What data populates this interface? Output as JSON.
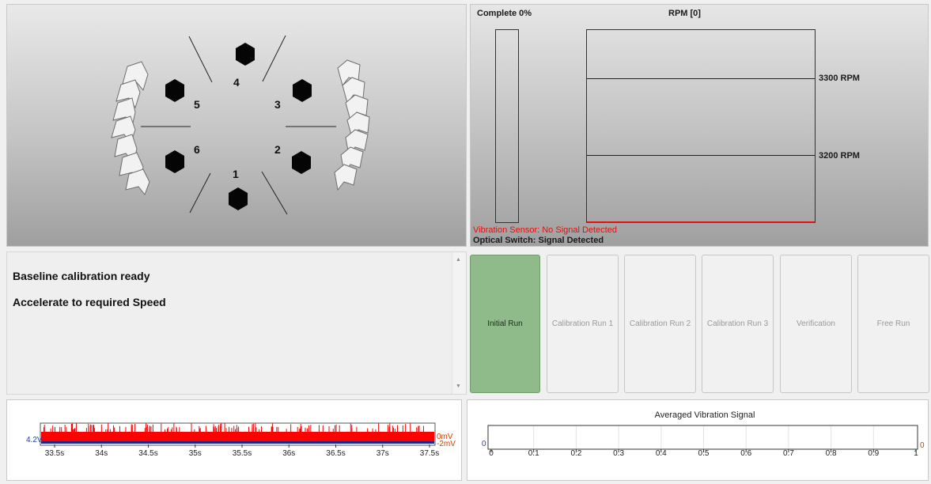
{
  "rotor": {
    "positions": [
      {
        "label": "1"
      },
      {
        "label": "2"
      },
      {
        "label": "3"
      },
      {
        "label": "4"
      },
      {
        "label": "5"
      },
      {
        "label": "6"
      }
    ]
  },
  "rpm_display": {
    "complete_label": "Complete 0%",
    "rpm_label": "RPM [0]",
    "upper_limit_label": "3300 RPM",
    "lower_limit_label": "3200 RPM",
    "vibration_status": "Vibration Sensor: No Signal Detected",
    "optical_status": "Optical Switch: Signal Detected",
    "status_error_color": "#e01010",
    "progress_fraction": 0
  },
  "messages": {
    "line1": "Baseline calibration ready",
    "line2": "Accelerate to required Speed"
  },
  "run_buttons": [
    {
      "label": "Initial Run",
      "active": true
    },
    {
      "label": "Calibration Run 1",
      "active": false
    },
    {
      "label": "Calibration Run 2",
      "active": false
    },
    {
      "label": "Calibration Run 3",
      "active": false
    },
    {
      "label": "Verification",
      "active": false
    },
    {
      "label": "Free Run",
      "active": false
    }
  ],
  "chart_data": [
    {
      "type": "area",
      "x_ticks": [
        "33.5s",
        "34s",
        "34.5s",
        "35s",
        "35.5s",
        "36s",
        "36.5s",
        "37s",
        "37.5s"
      ],
      "left_axis_label": "4.2V",
      "right_axis_top": "0mV",
      "right_axis_bottom": "-2mV",
      "series": [
        {
          "color": "#ff0000"
        },
        {
          "color": "#1a2a8c"
        }
      ]
    },
    {
      "type": "line",
      "title": "Averaged Vibration Signal",
      "x_ticks": [
        "0",
        "0.1",
        "0.2",
        "0.3",
        "0.4",
        "0.5",
        "0.6",
        "0.7",
        "0.8",
        "0.9",
        "1"
      ],
      "xlim": [
        0,
        1
      ],
      "left_y_label": "0",
      "right_y_label": "0",
      "left_label_color": "#1e3ea8",
      "right_label_color": "#d23b00",
      "grid": true
    }
  ]
}
